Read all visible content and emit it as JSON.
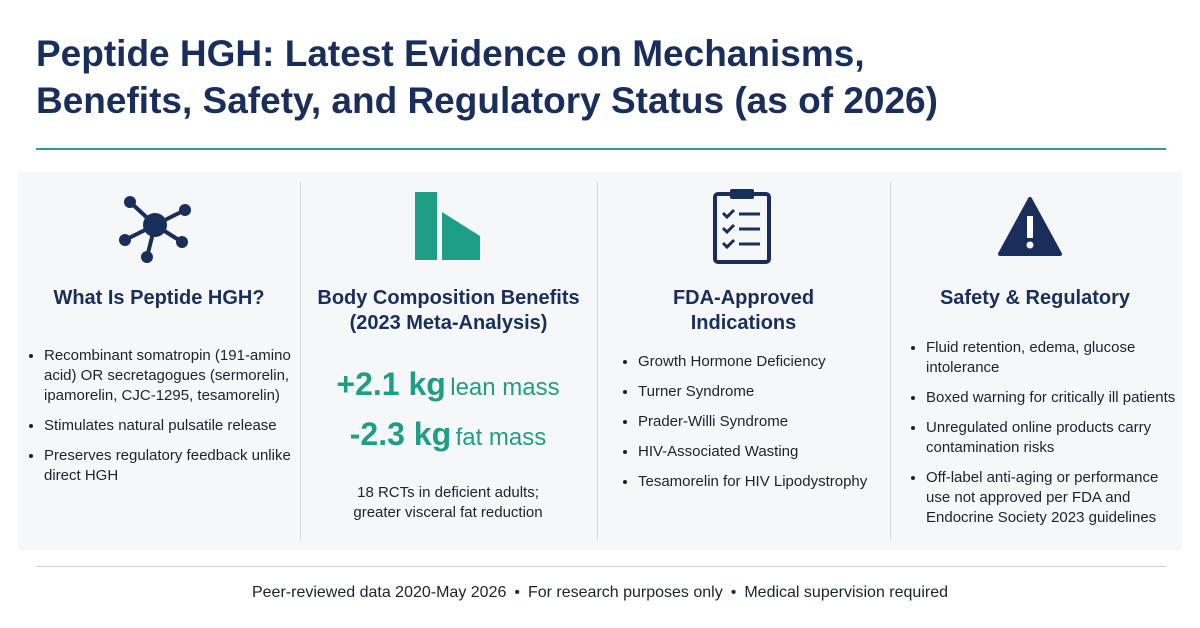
{
  "header": {
    "title_lines": [
      "Peptide HGH: Latest Evidence on Mechanisms,",
      "Benefits, Safety, and Regulatory Status (as of 2026)"
    ]
  },
  "columns": [
    {
      "heading": [
        "What Is Peptide HGH?"
      ],
      "bullets": [
        "Recombinant somatropin (191-amino acid) OR secretagogues (sermorelin, ipamorelin, CJC-1295, tesamorelin)",
        "Stimulates natural pulsatile release",
        "Preserves regulatory feedback unlike direct HGH"
      ]
    },
    {
      "heading": [
        "Body Composition Benefits",
        "(2023 Meta-Analysis)"
      ],
      "stats": [
        {
          "value": "+2.1 kg",
          "label": "lean mass"
        },
        {
          "value": "-2.3 kg",
          "label": "fat mass"
        }
      ],
      "note": [
        "18 RCTs in deficient adults;",
        "greater visceral fat reduction"
      ]
    },
    {
      "heading": [
        "FDA-Approved",
        "Indications"
      ],
      "bullets": [
        "Growth Hormone Deficiency",
        "Turner Syndrome",
        "Prader-Willi Syndrome",
        "HIV-Associated Wasting",
        "Tesamorelin for HIV Lipodystrophy"
      ]
    },
    {
      "heading": [
        "Safety & Regulatory"
      ],
      "bullets": [
        "Fluid retention, edema, glucose intolerance",
        "Boxed warning for critically ill patients",
        "Unregulated online products carry contamination risks",
        "Off-label anti-aging or performance use not approved per FDA and Endocrine Society 2023 guidelines"
      ]
    }
  ],
  "footer": [
    "Peer-reviewed data 2020-May 2026",
    "For research purposes only",
    "Medical supervision required"
  ]
}
